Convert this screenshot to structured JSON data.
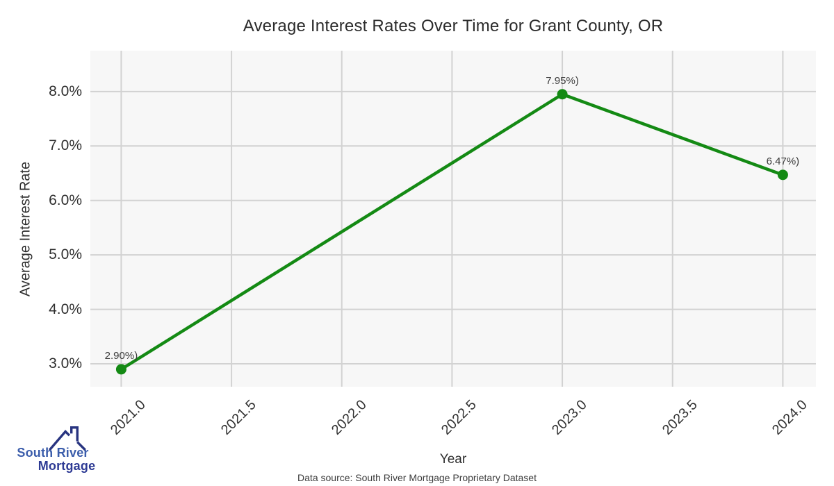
{
  "chart_data": {
    "type": "line",
    "title": "Average Interest Rates Over Time for Grant County, OR",
    "xlabel": "Year",
    "ylabel": "Average Interest Rate",
    "x": [
      2021,
      2023,
      2024
    ],
    "y": [
      2.9,
      7.95,
      6.47
    ],
    "point_labels": [
      "2.90%)",
      "7.95%)",
      "6.47%)"
    ],
    "x_ticks": [
      2021.0,
      2021.5,
      2022.0,
      2022.5,
      2023.0,
      2023.5,
      2024.0
    ],
    "x_tick_labels": [
      "2021.0",
      "2021.5",
      "2022.0",
      "2022.5",
      "2023.0",
      "2023.5",
      "2024.0"
    ],
    "y_ticks": [
      3.0,
      4.0,
      5.0,
      6.0,
      7.0,
      8.0
    ],
    "y_tick_labels": [
      "3.0%",
      "4.0%",
      "5.0%",
      "6.0%",
      "7.0%",
      "8.0%"
    ],
    "xlim": [
      2020.86,
      2024.15
    ],
    "ylim": [
      2.58,
      8.75
    ],
    "grid": true,
    "legend": null,
    "colors": {
      "line": "#148a14",
      "marker": "#148a14",
      "grid": "#d2d2d2",
      "panel_bg": "#f7f7f7",
      "point_label_text": "#3a3a3a"
    }
  },
  "footer": {
    "data_source": "Data source: South River Mortgage Proprietary Dataset"
  },
  "logo": {
    "line1": "South River",
    "line2": "Mortgage",
    "icon_color": "#283480"
  }
}
